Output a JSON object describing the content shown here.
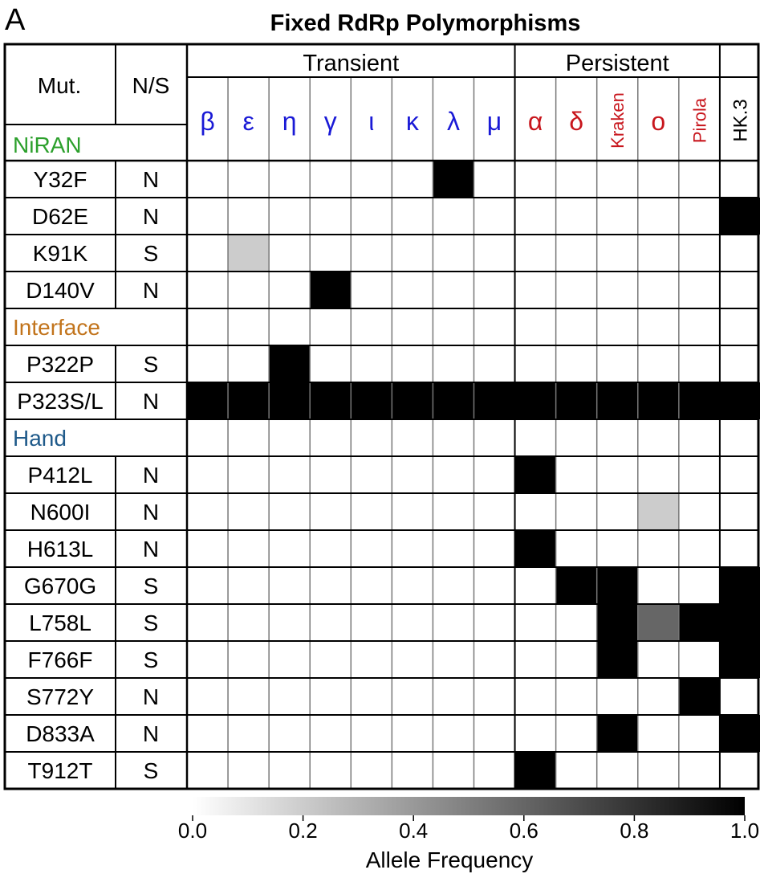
{
  "chart_data": {
    "type": "heatmap",
    "panel_label": "A",
    "title": "Fixed RdRp Polymorphisms",
    "header": {
      "mutation": "Mut.",
      "ns": "N/S"
    },
    "groups": [
      {
        "label": "Transient",
        "start": 0,
        "end": 8
      },
      {
        "label": "Persistent",
        "start": 8,
        "end": 13
      },
      {
        "label": "",
        "start": 13,
        "end": 14
      }
    ],
    "variants": [
      {
        "label": "β",
        "color": "#1a1ad6",
        "rotated": false
      },
      {
        "label": "ε",
        "color": "#1a1ad6",
        "rotated": false
      },
      {
        "label": "η",
        "color": "#1a1ad6",
        "rotated": false
      },
      {
        "label": "γ",
        "color": "#1a1ad6",
        "rotated": false
      },
      {
        "label": "ι",
        "color": "#1a1ad6",
        "rotated": false
      },
      {
        "label": "κ",
        "color": "#1a1ad6",
        "rotated": false
      },
      {
        "label": "λ",
        "color": "#1a1ad6",
        "rotated": false
      },
      {
        "label": "μ",
        "color": "#1a1ad6",
        "rotated": false
      },
      {
        "label": "α",
        "color": "#c8161d",
        "rotated": false
      },
      {
        "label": "δ",
        "color": "#c8161d",
        "rotated": false
      },
      {
        "label": "Kraken",
        "color": "#c8161d",
        "rotated": true
      },
      {
        "label": "ο",
        "color": "#c8161d",
        "rotated": false
      },
      {
        "label": "Pirola",
        "color": "#c8161d",
        "rotated": true
      },
      {
        "label": "HK.3",
        "color": "#000000",
        "rotated": true
      }
    ],
    "sections": [
      {
        "label": "NiRAN",
        "color": "#2ca02c"
      },
      {
        "label": "Interface",
        "color": "#c2741c"
      },
      {
        "label": "Hand",
        "color": "#1f5a8a"
      }
    ],
    "rows": [
      {
        "section": "NiRAN",
        "mutation": "Y32F",
        "ns": "N",
        "values": [
          0,
          0,
          0,
          0,
          0,
          0,
          1,
          0,
          0,
          0,
          0,
          0,
          0,
          0
        ]
      },
      {
        "mutation": "D62E",
        "ns": "N",
        "values": [
          0,
          0,
          0,
          0,
          0,
          0,
          0,
          0,
          0,
          0,
          0,
          0,
          0,
          1
        ]
      },
      {
        "mutation": "K91K",
        "ns": "S",
        "values": [
          0,
          0.2,
          0,
          0,
          0,
          0,
          0,
          0,
          0,
          0,
          0,
          0,
          0,
          0
        ]
      },
      {
        "mutation": "D140V",
        "ns": "N",
        "values": [
          0,
          0,
          0,
          1,
          0,
          0,
          0,
          0,
          0,
          0,
          0,
          0,
          0,
          0
        ]
      },
      {
        "section": "Interface",
        "values": [
          0,
          0,
          0,
          0,
          0,
          0,
          0,
          0,
          0,
          0,
          0,
          0,
          0,
          0
        ]
      },
      {
        "mutation": "P322P",
        "ns": "S",
        "values": [
          0,
          0,
          1,
          0,
          0,
          0,
          0,
          0,
          0,
          0,
          0,
          0,
          0,
          0
        ]
      },
      {
        "mutation": "P323S/L",
        "ns": "N",
        "values": [
          1,
          1,
          1,
          1,
          1,
          1,
          1,
          1,
          1,
          1,
          1,
          1,
          1,
          1
        ]
      },
      {
        "section": "Hand",
        "values": [
          0,
          0,
          0,
          0,
          0,
          0,
          0,
          0,
          0,
          0,
          0,
          0,
          0,
          0
        ]
      },
      {
        "mutation": "P412L",
        "ns": "N",
        "values": [
          0,
          0,
          0,
          0,
          0,
          0,
          0,
          0,
          1,
          0,
          0,
          0,
          0,
          0
        ]
      },
      {
        "mutation": "N600I",
        "ns": "N",
        "values": [
          0,
          0,
          0,
          0,
          0,
          0,
          0,
          0,
          0,
          0,
          0,
          0.2,
          0,
          0
        ]
      },
      {
        "mutation": "H613L",
        "ns": "N",
        "values": [
          0,
          0,
          0,
          0,
          0,
          0,
          0,
          0,
          1,
          0,
          0,
          0,
          0,
          0
        ]
      },
      {
        "mutation": "G670G",
        "ns": "S",
        "values": [
          0,
          0,
          0,
          0,
          0,
          0,
          0,
          0,
          0,
          1,
          1,
          0,
          0,
          1
        ]
      },
      {
        "mutation": "L758L",
        "ns": "S",
        "values": [
          0,
          0,
          0,
          0,
          0,
          0,
          0,
          0,
          0,
          0,
          1,
          0.6,
          1,
          1
        ]
      },
      {
        "mutation": "F766F",
        "ns": "S",
        "values": [
          0,
          0,
          0,
          0,
          0,
          0,
          0,
          0,
          0,
          0,
          1,
          0,
          0,
          1
        ]
      },
      {
        "mutation": "S772Y",
        "ns": "N",
        "values": [
          0,
          0,
          0,
          0,
          0,
          0,
          0,
          0,
          0,
          0,
          0,
          0,
          1,
          0
        ]
      },
      {
        "mutation": "D833A",
        "ns": "N",
        "values": [
          0,
          0,
          0,
          0,
          0,
          0,
          0,
          0,
          0,
          0,
          1,
          0,
          0,
          1
        ]
      },
      {
        "mutation": "T912T",
        "ns": "S",
        "values": [
          0,
          0,
          0,
          0,
          0,
          0,
          0,
          0,
          1,
          0,
          0,
          0,
          0,
          0
        ]
      }
    ],
    "colorbar": {
      "label": "Allele Frequency",
      "range": [
        0,
        1
      ],
      "ticks": [
        "0.0",
        "0.2",
        "0.4",
        "0.6",
        "0.8",
        "1.0"
      ]
    }
  }
}
